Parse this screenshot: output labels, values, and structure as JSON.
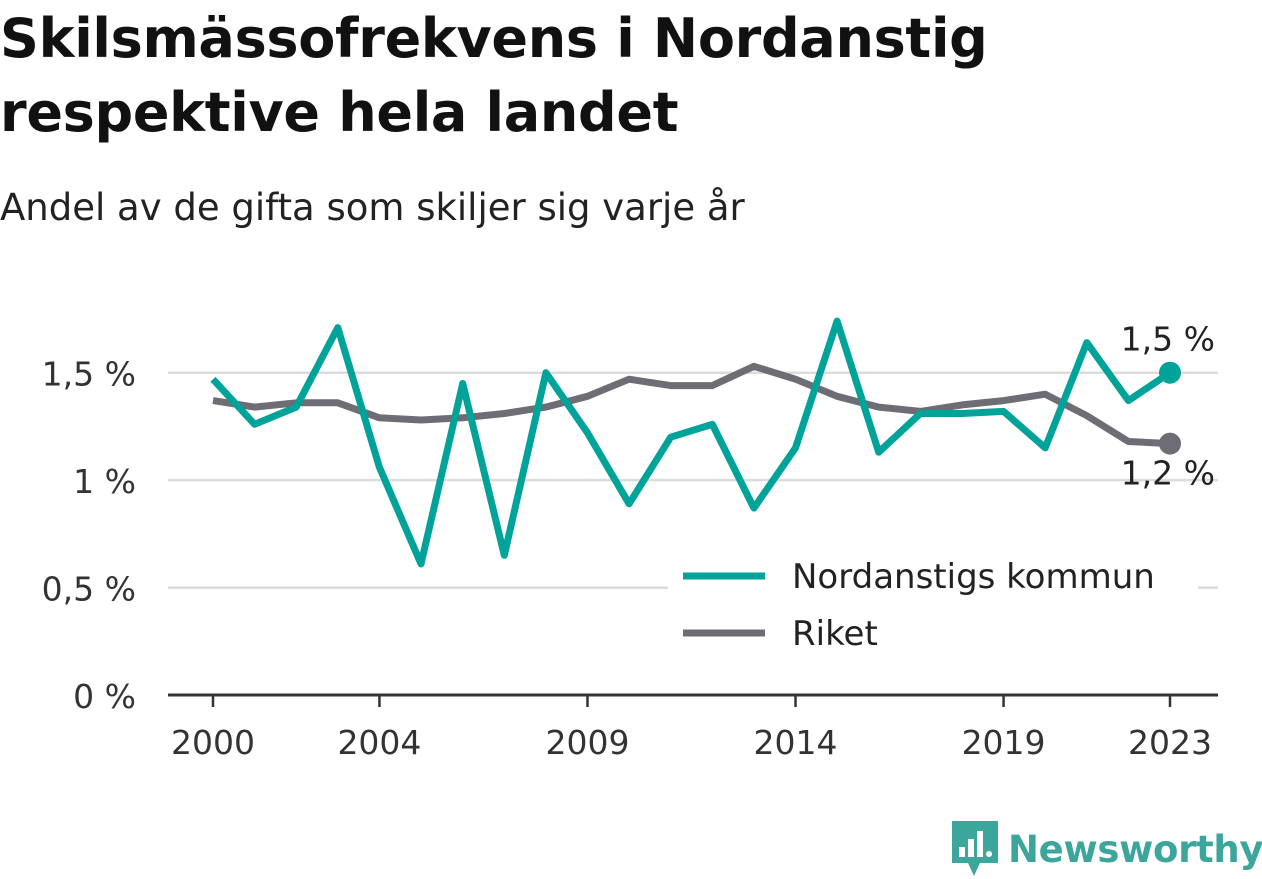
{
  "title": "Skilsmässofrekvens i Nordanstig respektive hela landet",
  "subtitle": "Andel av de gifta som skiljer sig varje år",
  "brand": {
    "name": "Newsworthy",
    "icon": "newsworthy-logo-icon"
  },
  "colors": {
    "nordanstig": "#00a39a",
    "riket": "#6e6c74",
    "grid": "#dcdcdc",
    "axis": "#333333"
  },
  "chart_data": {
    "type": "line",
    "x": [
      2000,
      2001,
      2002,
      2003,
      2004,
      2005,
      2006,
      2007,
      2008,
      2009,
      2010,
      2011,
      2012,
      2013,
      2014,
      2015,
      2016,
      2017,
      2018,
      2019,
      2020,
      2021,
      2022,
      2023
    ],
    "x_tick_labels": [
      "2000",
      "2004",
      "2009",
      "2014",
      "2019",
      "2023"
    ],
    "x_tick_values": [
      2000,
      2004,
      2009,
      2014,
      2019,
      2023
    ],
    "y_tick_labels": [
      "0 %",
      "0,5 %",
      "1 %",
      "1,5 %"
    ],
    "y_tick_values": [
      0,
      0.5,
      1.0,
      1.5
    ],
    "ylim": [
      0,
      1.75
    ],
    "xlim": [
      2000,
      2023
    ],
    "grid": true,
    "legend_position": "bottom-right",
    "series": [
      {
        "name": "Nordanstigs kommun",
        "color_key": "nordanstig",
        "end_label": "1,5 %",
        "values": [
          1.47,
          1.26,
          1.34,
          1.71,
          1.06,
          0.61,
          1.45,
          0.65,
          1.5,
          1.22,
          0.89,
          1.2,
          1.26,
          0.87,
          1.15,
          1.74,
          1.13,
          1.31,
          1.31,
          1.32,
          1.15,
          1.64,
          1.37,
          1.5
        ]
      },
      {
        "name": "Riket",
        "color_key": "riket",
        "end_label": "1,2 %",
        "values": [
          1.37,
          1.34,
          1.36,
          1.36,
          1.29,
          1.28,
          1.29,
          1.31,
          1.34,
          1.39,
          1.47,
          1.44,
          1.44,
          1.53,
          1.47,
          1.39,
          1.34,
          1.32,
          1.35,
          1.37,
          1.4,
          1.3,
          1.18,
          1.17
        ]
      }
    ]
  }
}
